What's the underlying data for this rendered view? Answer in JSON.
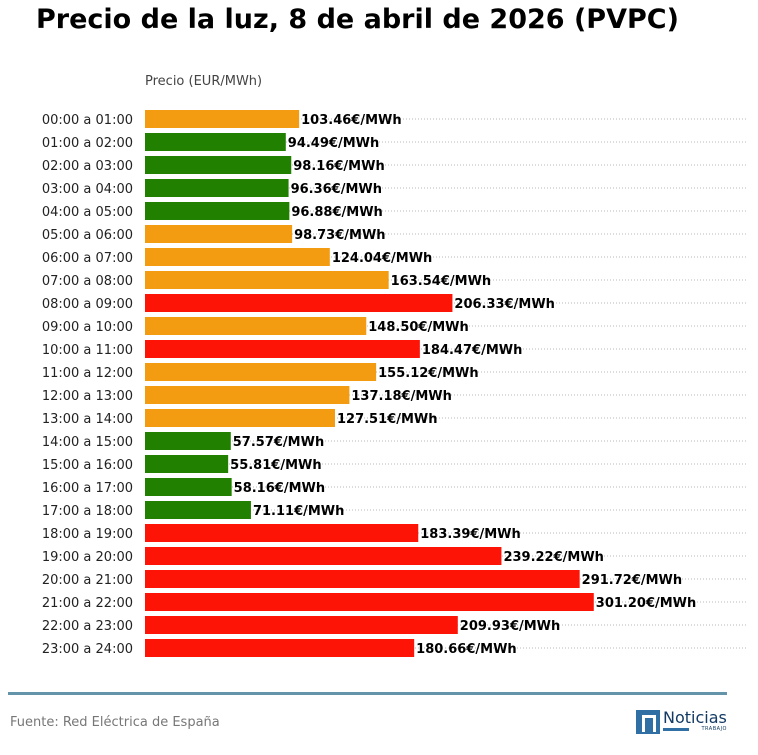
{
  "title": "Precio de la luz, 8 de abril de 2026 (PVPC)",
  "footer": {
    "source": "Fuente: Red Eléctrica de España",
    "logo_name": "Noticias",
    "logo_tagline": "TRABAJO"
  },
  "colors": {
    "low": "#228000",
    "medium": "#f39c12",
    "high": "#fe1407"
  },
  "chart_data": {
    "type": "bar",
    "orientation": "horizontal",
    "xlabel": "Precio (EUR/MWh)",
    "xlim": [
      0,
      330
    ],
    "grid": true,
    "value_suffix": "€/MWh",
    "categories": [
      "00:00 a 01:00",
      "01:00 a 02:00",
      "02:00 a 03:00",
      "03:00 a 04:00",
      "04:00 a 05:00",
      "05:00 a 06:00",
      "06:00 a 07:00",
      "07:00 a 08:00",
      "08:00 a 09:00",
      "09:00 a 10:00",
      "10:00 a 11:00",
      "11:00 a 12:00",
      "12:00 a 13:00",
      "13:00 a 14:00",
      "14:00 a 15:00",
      "15:00 a 16:00",
      "16:00 a 17:00",
      "17:00 a 18:00",
      "18:00 a 19:00",
      "19:00 a 20:00",
      "20:00 a 21:00",
      "21:00 a 22:00",
      "22:00 a 23:00",
      "23:00 a 24:00"
    ],
    "values": [
      103.46,
      94.49,
      98.16,
      96.36,
      96.88,
      98.73,
      124.04,
      163.54,
      206.33,
      148.5,
      184.47,
      155.12,
      137.18,
      127.51,
      57.57,
      55.81,
      58.16,
      71.11,
      183.39,
      239.22,
      291.72,
      301.2,
      209.93,
      180.66
    ],
    "value_labels": [
      "103.46€/MWh",
      "94.49€/MWh",
      "98.16€/MWh",
      "96.36€/MWh",
      "96.88€/MWh",
      "98.73€/MWh",
      "124.04€/MWh",
      "163.54€/MWh",
      "206.33€/MWh",
      "148.50€/MWh",
      "184.47€/MWh",
      "155.12€/MWh",
      "137.18€/MWh",
      "127.51€/MWh",
      "57.57€/MWh",
      "55.81€/MWh",
      "58.16€/MWh",
      "71.11€/MWh",
      "183.39€/MWh",
      "239.22€/MWh",
      "291.72€/MWh",
      "301.20€/MWh",
      "209.93€/MWh",
      "180.66€/MWh"
    ],
    "bar_colors": [
      "medium",
      "low",
      "low",
      "low",
      "low",
      "medium",
      "medium",
      "medium",
      "high",
      "medium",
      "high",
      "medium",
      "medium",
      "medium",
      "low",
      "low",
      "low",
      "low",
      "high",
      "high",
      "high",
      "high",
      "high",
      "high"
    ]
  }
}
